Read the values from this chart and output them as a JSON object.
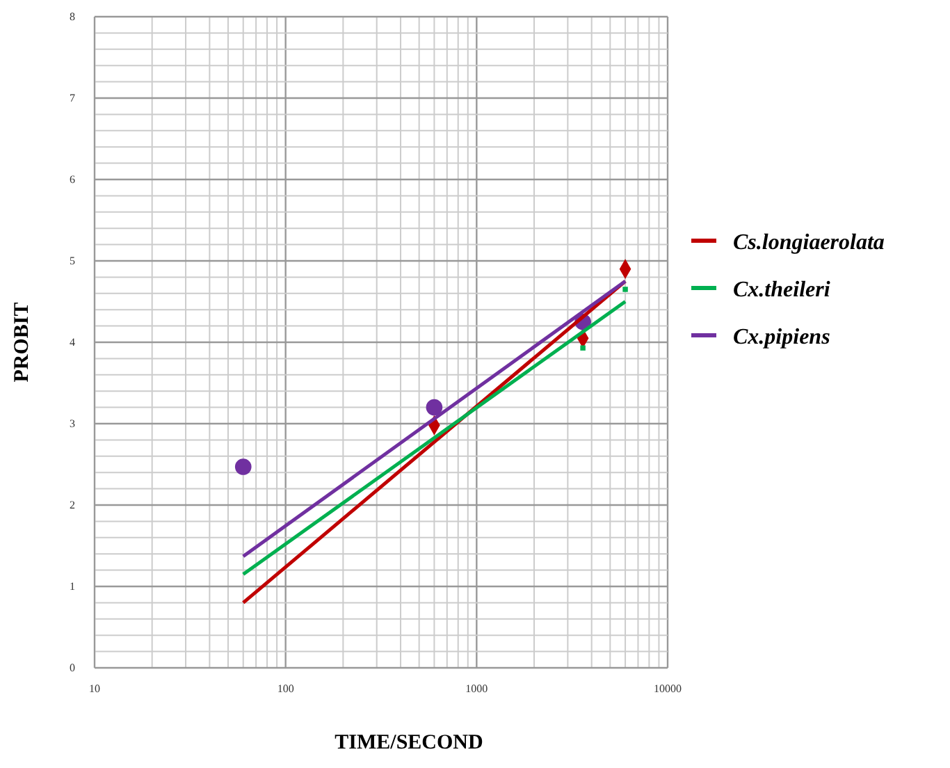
{
  "chart_data": {
    "type": "line",
    "xlabel": "TIME/SECOND",
    "ylabel": "PROBIT",
    "log": "x",
    "xlim": [
      10,
      10000
    ],
    "ylim": [
      0,
      8
    ],
    "xticks": [
      10,
      {
        "value": 20,
        "label": null
      },
      {
        "value": 30,
        "label": null
      },
      {
        "value": 40,
        "label": null
      },
      {
        "value": 50,
        "label": null
      },
      {
        "value": 60,
        "label": null
      },
      {
        "value": 70,
        "label": null
      },
      {
        "value": 80,
        "label": null
      },
      {
        "value": 90,
        "label": null
      },
      100,
      {
        "value": 200,
        "label": null
      },
      {
        "value": 300,
        "label": null
      },
      {
        "value": 400,
        "label": null
      },
      {
        "value": 500,
        "label": null
      },
      {
        "value": 600,
        "label": null
      },
      {
        "value": 700,
        "label": null
      },
      {
        "value": 800,
        "label": null
      },
      {
        "value": 900,
        "label": null
      },
      1000,
      {
        "value": 2000,
        "label": null
      },
      {
        "value": 3000,
        "label": null
      },
      {
        "value": 4000,
        "label": null
      },
      {
        "value": 5000,
        "label": null
      },
      {
        "value": 6000,
        "label": null
      },
      {
        "value": 7000,
        "label": null
      },
      {
        "value": 8000,
        "label": null
      },
      {
        "value": 9000,
        "label": null
      },
      10000
    ],
    "yticks": [
      0,
      {
        "value": 0.2,
        "label": null
      },
      {
        "value": 0.4,
        "label": null
      },
      {
        "value": 0.6,
        "label": null
      },
      {
        "value": 0.8,
        "label": null
      },
      1,
      {
        "value": 1.2,
        "label": null
      },
      {
        "value": 1.4,
        "label": null
      },
      {
        "value": 1.6,
        "label": null
      },
      {
        "value": 1.8,
        "label": null
      },
      2,
      {
        "value": 2.2,
        "label": null
      },
      {
        "value": 2.4,
        "label": null
      },
      {
        "value": 2.6,
        "label": null
      },
      {
        "value": 2.8,
        "label": null
      },
      3,
      {
        "value": 3.2,
        "label": null
      },
      {
        "value": 3.4,
        "label": null
      },
      {
        "value": 3.6,
        "label": null
      },
      {
        "value": 3.8,
        "label": null
      },
      4,
      {
        "value": 4.2,
        "label": null
      },
      {
        "value": 4.4,
        "label": null
      },
      {
        "value": 4.6,
        "label": null
      },
      {
        "value": 4.8,
        "label": null
      },
      5,
      {
        "value": 5.2,
        "label": null
      },
      {
        "value": 5.4,
        "label": null
      },
      {
        "value": 5.6,
        "label": null
      },
      {
        "value": 5.8,
        "label": null
      },
      6,
      {
        "value": 6.2,
        "label": null
      },
      {
        "value": 6.4,
        "label": null
      },
      {
        "value": 6.6,
        "label": null
      },
      {
        "value": 6.8,
        "label": null
      },
      7,
      {
        "value": 7.2,
        "label": null
      },
      {
        "value": 7.4,
        "label": null
      },
      {
        "value": 7.6,
        "label": null
      },
      {
        "value": 7.8,
        "label": null
      },
      8
    ],
    "grid": true,
    "legend": "right",
    "line_style": "solid",
    "series": [
      {
        "type": "scatter",
        "color": "#c00000",
        "marker": "diamond",
        "x": [
          600,
          3600,
          6000
        ],
        "values": [
          2.98,
          4.05,
          4.9
        ]
      },
      {
        "type": "scatter",
        "color": "#00b050",
        "marker": "square",
        "x": [
          3600,
          6000
        ],
        "values": [
          3.93,
          4.65
        ]
      },
      {
        "type": "scatter",
        "color": "#7030a0",
        "marker": "circle",
        "x": [
          60,
          600,
          3600
        ],
        "values": [
          2.47,
          3.2,
          4.25
        ]
      },
      {
        "name": "Cs.longiaerolata",
        "color": "#c00000",
        "x": [
          60,
          6000
        ],
        "values": [
          0.8,
          4.75
        ]
      },
      {
        "name": "Cx.theileri",
        "color": "#00b050",
        "x": [
          60,
          6000
        ],
        "values": [
          1.15,
          4.5
        ]
      },
      {
        "name": "Cx.pipiens",
        "color": "#7030a0",
        "x": [
          60,
          6000
        ],
        "values": [
          1.37,
          4.75
        ]
      }
    ]
  }
}
